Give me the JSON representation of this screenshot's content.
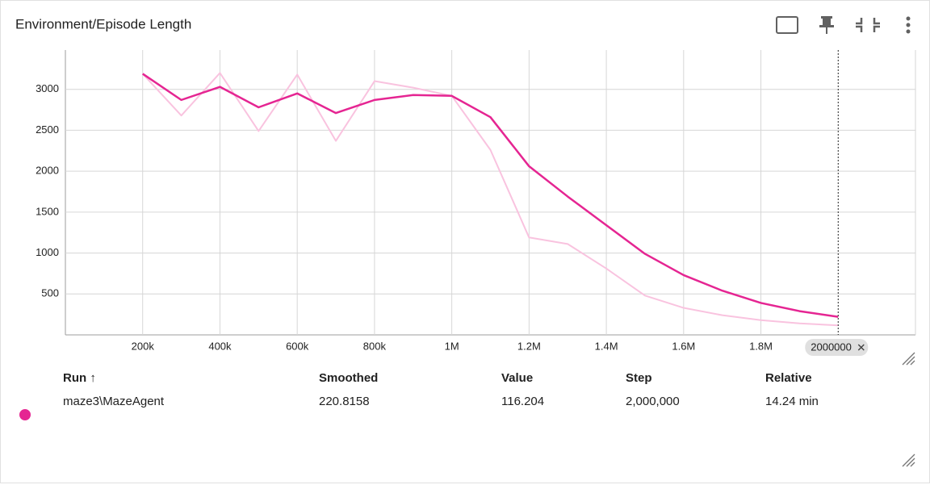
{
  "chart_data": {
    "type": "line",
    "title": "Environment/Episode Length",
    "x": [
      200000,
      300000,
      400000,
      500000,
      600000,
      700000,
      800000,
      900000,
      1000000,
      1100000,
      1200000,
      1300000,
      1400000,
      1500000,
      1600000,
      1700000,
      1800000,
      1900000,
      2000000
    ],
    "series": [
      {
        "color": "#f9c3df",
        "values": [
          3190,
          2680,
          3200,
          2490,
          3180,
          2370,
          3100,
          3020,
          2920,
          2260,
          1190,
          1110,
          810,
          480,
          330,
          240,
          180,
          140,
          116.204
        ]
      },
      {
        "color": "#e52592",
        "values": [
          3190,
          2870,
          3030,
          2780,
          2950,
          2710,
          2870,
          2930,
          2920,
          2660,
          2060,
          1690,
          1340,
          990,
          730,
          540,
          390,
          290,
          220.8158
        ]
      }
    ],
    "xlim": [
      0,
      2200000
    ],
    "ylim": [
      0,
      3480
    ],
    "xticks": [
      {
        "value": 200000,
        "label": "200k"
      },
      {
        "value": 400000,
        "label": "400k"
      },
      {
        "value": 600000,
        "label": "600k"
      },
      {
        "value": 800000,
        "label": "800k"
      },
      {
        "value": 1000000,
        "label": "1M"
      },
      {
        "value": 1200000,
        "label": "1.2M"
      },
      {
        "value": 1400000,
        "label": "1.4M"
      },
      {
        "value": 1600000,
        "label": "1.6M"
      },
      {
        "value": 1800000,
        "label": "1.8M"
      }
    ],
    "yticks": [
      500,
      1000,
      1500,
      2000,
      2500,
      3000
    ],
    "grid": true,
    "cursor_x": 2000000
  },
  "table": {
    "headers": [
      "Run ↑",
      "Smoothed",
      "Value",
      "Step",
      "Relative"
    ],
    "rows": [
      [
        "maze3\\MazeAgent",
        "220.8158",
        "116.204",
        "2,000,000",
        "14.24 min"
      ]
    ]
  }
}
